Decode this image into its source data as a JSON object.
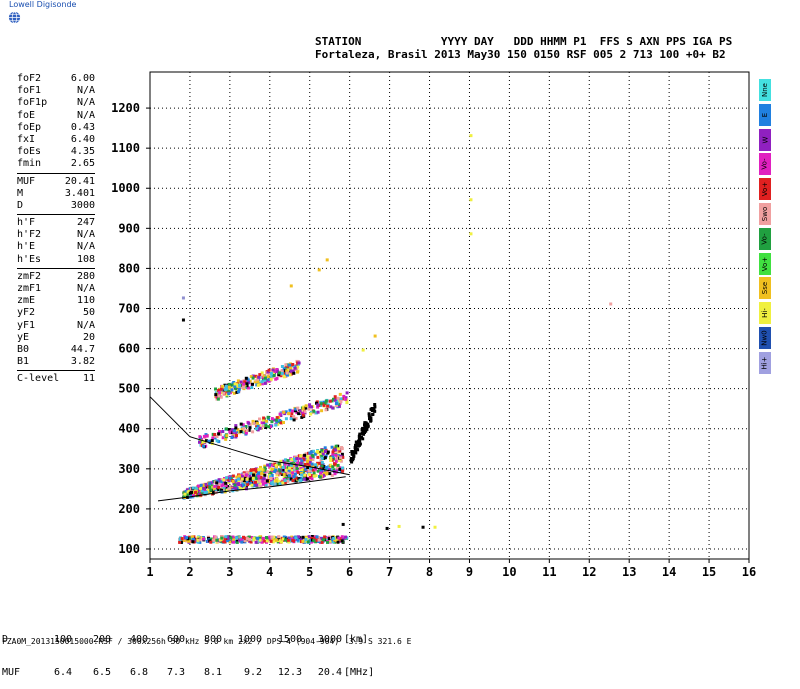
{
  "brand": "Lowell Digisonde",
  "header": {
    "line1": "STATION            YYYY DAY   DDD HHMM P1  FFS S AXN PPS IGA PS",
    "line2": "Fortaleza, Brasil 2013 May30 150 0150 RSF 005 2 713 100 +0+ B2"
  },
  "params": [
    {
      "name": "foF2",
      "value": "6.00"
    },
    {
      "name": "foF1",
      "value": "N/A"
    },
    {
      "name": "foF1p",
      "value": "N/A"
    },
    {
      "name": "foE",
      "value": "N/A"
    },
    {
      "name": "foEp",
      "value": "0.43"
    },
    {
      "name": "fxI",
      "value": "6.40"
    },
    {
      "name": "foEs",
      "value": "4.35"
    },
    {
      "name": "fmin",
      "value": "2.65"
    },
    {
      "sep": true
    },
    {
      "name": "MUF",
      "value": "20.41"
    },
    {
      "name": "M",
      "value": "3.401"
    },
    {
      "name": "D",
      "value": "3000"
    },
    {
      "sep": true
    },
    {
      "name": "h'F",
      "value": "247"
    },
    {
      "name": "h'F2",
      "value": "N/A"
    },
    {
      "name": "h'E",
      "value": "N/A"
    },
    {
      "name": "h'Es",
      "value": "108"
    },
    {
      "sep": true
    },
    {
      "name": "zmF2",
      "value": "280"
    },
    {
      "name": "zmF1",
      "value": "N/A"
    },
    {
      "name": "zmE",
      "value": "110"
    },
    {
      "name": "yF2",
      "value": "50"
    },
    {
      "name": "yF1",
      "value": "N/A"
    },
    {
      "name": "yE",
      "value": "20"
    },
    {
      "name": "B0",
      "value": "44.7"
    },
    {
      "name": "B1",
      "value": "3.82"
    },
    {
      "sep": true
    },
    {
      "name": "C-level",
      "value": "11"
    }
  ],
  "legend": [
    {
      "label": "Nne",
      "color": "#44e0e0"
    },
    {
      "label": "E",
      "color": "#2080e0"
    },
    {
      "label": "W",
      "color": "#9020c0"
    },
    {
      "label": "Vo-",
      "color": "#e020c0"
    },
    {
      "label": "Vo+",
      "color": "#e02020"
    },
    {
      "label": "Swo",
      "color": "#f0a0a0"
    },
    {
      "label": "Vo-",
      "color": "#20a040"
    },
    {
      "label": "Vo+",
      "color": "#40e040"
    },
    {
      "label": "Sse",
      "color": "#f0c020"
    },
    {
      "label": "Hi-",
      "color": "#f0f040"
    },
    {
      "label": "Nw0",
      "color": "#2050b0"
    },
    {
      "label": "Hi+",
      "color": "#a0a0e0"
    }
  ],
  "muf_table": {
    "d_label": "D",
    "d_values": [
      "100",
      "200",
      "400",
      "600",
      "800",
      "1000",
      "1500",
      "3000"
    ],
    "d_unit": "[km]",
    "muf_label": "MUF",
    "muf_values": [
      "6.4",
      "6.5",
      "6.8",
      "7.3",
      "8.1",
      "9.2",
      "12.3",
      "20.4"
    ],
    "muf_unit": "[MHz]"
  },
  "footer": "FZA0M_2013150015000.RSF / 300x256h 50 kHz 5.0 km 2x2 / DPS-4 (904-904)  3.9 S 321.6 E",
  "chart_data": {
    "type": "scatter",
    "xlim": [
      1,
      16
    ],
    "ylim": [
      75,
      1290
    ],
    "xticks": [
      1,
      2,
      3,
      4,
      5,
      6,
      7,
      8,
      9,
      10,
      11,
      12,
      13,
      14,
      15,
      16
    ],
    "yticks": [
      100,
      200,
      300,
      400,
      500,
      600,
      700,
      800,
      900,
      1000,
      1100,
      1200
    ],
    "grid": true,
    "traces": [
      {
        "name": "Es",
        "color": "mixed",
        "f_range": [
          1.7,
          5.9
        ],
        "h": [
          120,
          135
        ]
      },
      {
        "name": "F-low",
        "color": "mixed",
        "f_range": [
          1.8,
          5.8
        ],
        "h_start": 240,
        "h_end": 330
      },
      {
        "name": "F-2hop",
        "color": "mixed",
        "f_range": [
          2.2,
          5.9
        ],
        "h_start": 370,
        "h_end": 480
      },
      {
        "name": "F-3hop",
        "color": "mixed",
        "f_range": [
          2.6,
          4.7
        ],
        "h_start": 490,
        "h_end": 560
      },
      {
        "name": "F-cusp",
        "color": "#000000",
        "f_range": [
          6.0,
          6.6
        ],
        "h_start": 330,
        "h_end": 460
      }
    ],
    "profile_curves": [
      {
        "name": "upper",
        "points": [
          [
            1,
            480
          ],
          [
            2,
            380
          ],
          [
            3,
            350
          ],
          [
            4,
            320
          ],
          [
            5,
            305
          ],
          [
            6,
            285
          ]
        ]
      },
      {
        "name": "lower",
        "points": [
          [
            1.2,
            220
          ],
          [
            2,
            230
          ],
          [
            3,
            245
          ],
          [
            4,
            255
          ],
          [
            5,
            268
          ],
          [
            5.9,
            280
          ]
        ]
      }
    ]
  }
}
